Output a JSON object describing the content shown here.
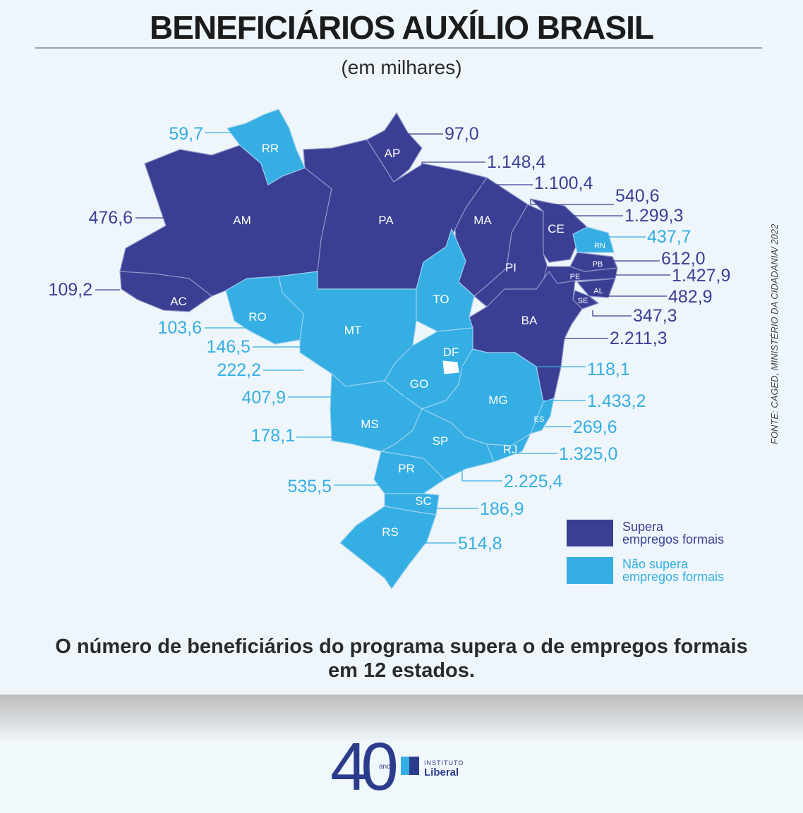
{
  "title": "BENEFICIÁRIOS AUXÍLIO BRASIL",
  "subtitle": "(em milhares)",
  "colors": {
    "supera": "#3a3f94",
    "nao_supera": "#35aee3",
    "label_dark": "#3a3f94",
    "label_light": "#35aee3"
  },
  "states": [
    {
      "uf": "RR",
      "value": "59,7",
      "category": "nao_supera"
    },
    {
      "uf": "AP",
      "value": "97,0",
      "category": "supera"
    },
    {
      "uf": "PA",
      "value": "1.148,4",
      "category": "supera"
    },
    {
      "uf": "MA",
      "value": "1.100,4",
      "category": "supera"
    },
    {
      "uf": "PI",
      "value": "540,6",
      "category": "supera"
    },
    {
      "uf": "CE",
      "value": "1.299,3",
      "category": "supera"
    },
    {
      "uf": "RN",
      "value": "437,7",
      "category": "nao_supera"
    },
    {
      "uf": "PB",
      "value": "612,0",
      "category": "supera"
    },
    {
      "uf": "PE",
      "value": "1.427,9",
      "category": "supera"
    },
    {
      "uf": "AL",
      "value": "482,9",
      "category": "supera"
    },
    {
      "uf": "SE",
      "value": "347,3",
      "category": "supera"
    },
    {
      "uf": "BA",
      "value": "2.211,3",
      "category": "supera"
    },
    {
      "uf": "AM",
      "value": "476,6",
      "category": "supera"
    },
    {
      "uf": "AC",
      "value": "109,2",
      "category": "supera"
    },
    {
      "uf": "RO",
      "value": "103,6",
      "category": "nao_supera"
    },
    {
      "uf": "TO",
      "value": "146,5",
      "category": "nao_supera"
    },
    {
      "uf": "MT",
      "value": "222,2",
      "category": "nao_supera"
    },
    {
      "uf": "DF",
      "value": "118,1",
      "category": "nao_supera"
    },
    {
      "uf": "GO",
      "value": "407,9",
      "category": "nao_supera"
    },
    {
      "uf": "MG",
      "value": "1.433,2",
      "category": "nao_supera"
    },
    {
      "uf": "MS",
      "value": "178,1",
      "category": "nao_supera"
    },
    {
      "uf": "ES",
      "value": "269,6",
      "category": "nao_supera"
    },
    {
      "uf": "SP",
      "value": "2.225,4",
      "category": "nao_supera"
    },
    {
      "uf": "RJ",
      "value": "1.325,0",
      "category": "nao_supera"
    },
    {
      "uf": "PR",
      "value": "535,5",
      "category": "nao_supera"
    },
    {
      "uf": "SC",
      "value": "186,9",
      "category": "nao_supera"
    },
    {
      "uf": "RS",
      "value": "514,8",
      "category": "nao_supera"
    }
  ],
  "legend": [
    {
      "label_line1": "Supera",
      "label_line2": "empregos formais",
      "category": "supera"
    },
    {
      "label_line1": "Não supera",
      "label_line2": "empregos formais",
      "category": "nao_supera"
    }
  ],
  "source": "FONTE: CAGED, MINISTÉRIO DA CIDADANIA/ 2022",
  "footnote_line1": "O número de beneficiários do programa supera o de empregos formais",
  "footnote_line2": "em 12 estados.",
  "logo": {
    "number": "40",
    "anos": "anos",
    "org_line1": "INSTITUTO",
    "org_line2": "Liberal"
  }
}
